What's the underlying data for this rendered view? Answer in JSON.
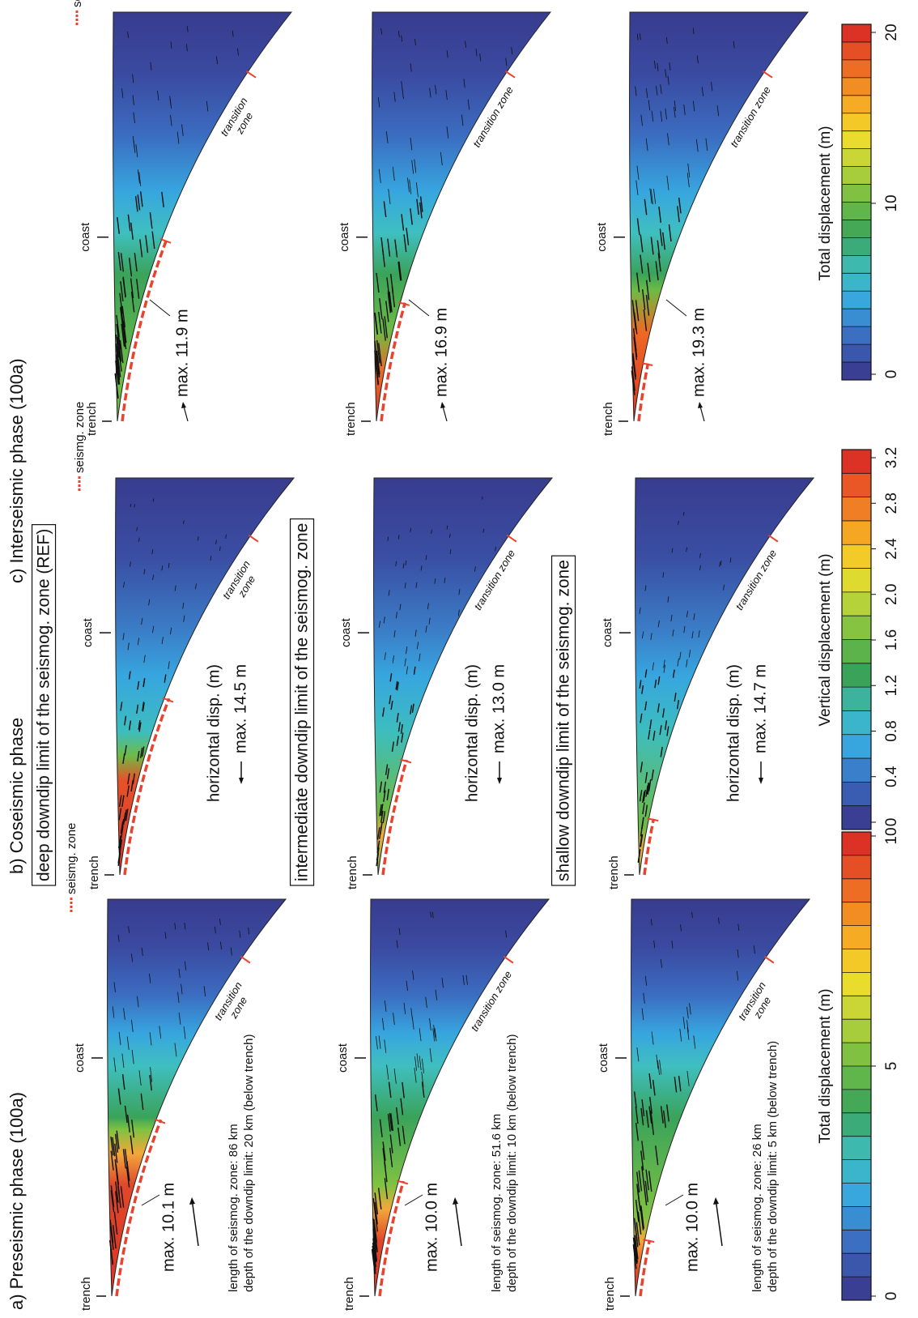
{
  "columns": [
    {
      "title": "a) Preseismic phase (100a)",
      "panels": [
        {
          "trench": "trench",
          "coast": "coast",
          "transition": [
            "transition",
            "zone"
          ],
          "seismg": "seismg. zone",
          "max": "max. 10.1 m",
          "note": [
            "length of seismog. zone: 86 km",
            "depth of the downdip limit: 20 km (below trench)"
          ]
        },
        {
          "trench": "trench",
          "coast": "coast",
          "transition": [
            "transition zone"
          ],
          "max": "max. 10.0 m",
          "note": [
            "length of seismog. zone: 51.6 km",
            "depth of the downdip limit: 10 km (below trench)"
          ]
        },
        {
          "trench": "trench",
          "coast": "coast",
          "transition": [
            "transition",
            "zone"
          ],
          "max": "max. 10.0 m",
          "note": [
            "length of seismog. zone: 26 km",
            "depth of the downdip limit: 5 km (below trench)"
          ]
        }
      ]
    },
    {
      "title": "b) Coseismic phase",
      "panels": [
        {
          "header": "deep downdip limit of the seismog. zone (REF)",
          "trench": "trench",
          "coast": "coast",
          "transition": [
            "transition",
            "zone"
          ],
          "seismg": "seismg. zone",
          "hdisp": "horizontal disp. (m)",
          "max": "max. 14.5 m"
        },
        {
          "header": "intermediate downdip limit of the seismog. zone",
          "trench": "trench",
          "coast": "coast",
          "transition": [
            "transition zone"
          ],
          "hdisp": "horizontal disp. (m)",
          "max": "max. 13.0 m"
        },
        {
          "header": "shallow downdip limit of the seismog. zone",
          "trench": "trench",
          "coast": "coast",
          "transition": [
            "transition zone"
          ],
          "hdisp": "horizontal disp. (m)",
          "max": "max. 14.7 m"
        }
      ]
    },
    {
      "title": "c) Interseismic phase (100a)",
      "panels": [
        {
          "trench": "trench",
          "coast": "coast",
          "transition": [
            "transition",
            "zone"
          ],
          "seismg": "seismg. zone",
          "max": "max. 11.9 m"
        },
        {
          "trench": "trench",
          "coast": "coast",
          "transition": [
            "transition zone"
          ],
          "max": "max. 16.9 m"
        },
        {
          "trench": "trench",
          "coast": "coast",
          "transition": [
            "transition zone"
          ],
          "max": "max. 19.3 m"
        }
      ]
    }
  ],
  "colorbars": [
    {
      "title": "Total displacement (m)",
      "ticks": [
        "0",
        "5",
        "10"
      ]
    },
    {
      "title": "Vertical displacement (m)",
      "ticks": [
        "0",
        "0.4",
        "0.8",
        "1.2",
        "1.6",
        "2.0",
        "2.4",
        "2.8",
        "3.2"
      ]
    },
    {
      "title": "Total displacement (m)",
      "ticks": [
        "0",
        "10",
        "20"
      ]
    }
  ]
}
